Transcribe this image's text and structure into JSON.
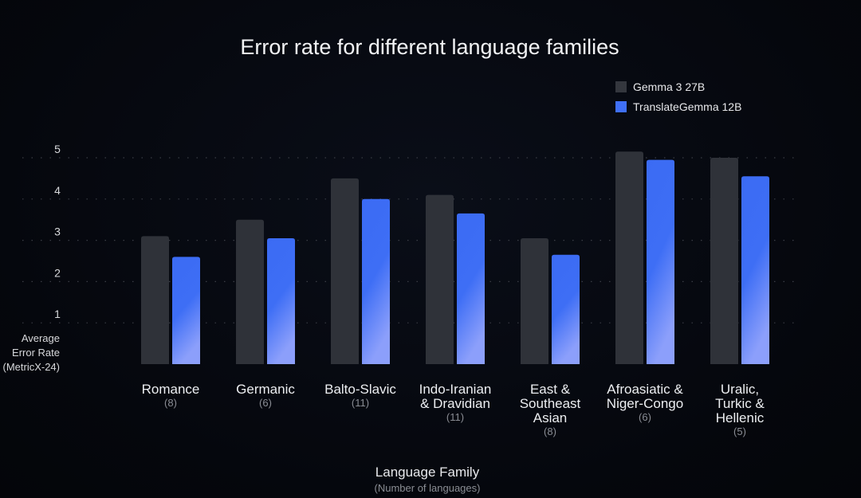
{
  "chart_data": {
    "type": "bar",
    "title": "Error rate for different language families",
    "xlabel": "Language Family",
    "xlabel_sub": "(Number of languages)",
    "ylabel": [
      "Average",
      "Error Rate",
      "(MetricX-24)"
    ],
    "ylim": [
      0,
      5
    ],
    "yticks": [
      "1",
      "2",
      "3",
      "4",
      "5"
    ],
    "grid": true,
    "legend_position": "top-right",
    "categories": [
      {
        "lines": [
          "Romance"
        ],
        "count": "(8)"
      },
      {
        "lines": [
          "Germanic"
        ],
        "count": "(6)"
      },
      {
        "lines": [
          "Balto-Slavic"
        ],
        "count": "(11)"
      },
      {
        "lines": [
          "Indo-Iranian",
          "& Dravidian"
        ],
        "count": "(11)"
      },
      {
        "lines": [
          "East &",
          "Southeast",
          "Asian"
        ],
        "count": "(8)"
      },
      {
        "lines": [
          "Afroasiatic &",
          "Niger-Congo"
        ],
        "count": "(6)"
      },
      {
        "lines": [
          "Uralic,",
          "Turkic &",
          "Hellenic"
        ],
        "count": "(5)"
      }
    ],
    "series": [
      {
        "name": "Gemma 3 27B",
        "color": "#2f3239",
        "values": [
          3.1,
          3.5,
          4.5,
          4.1,
          3.05,
          5.15,
          5.0
        ]
      },
      {
        "name": "TranslateGemma 12B",
        "color": "#3e6ef5",
        "values": [
          2.6,
          3.05,
          4.0,
          3.65,
          2.65,
          4.95,
          4.55
        ]
      }
    ]
  }
}
